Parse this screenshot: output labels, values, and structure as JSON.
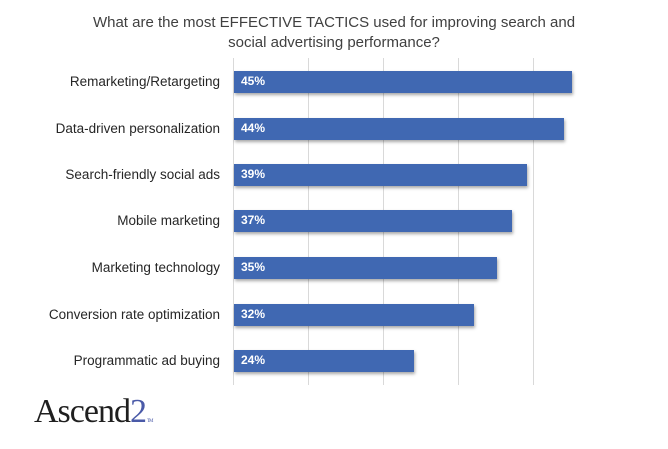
{
  "chart_data": {
    "type": "bar",
    "orientation": "horizontal",
    "title": "What are the most EFFECTIVE TACTICS used for improving search and social advertising performance?",
    "title_lines": [
      "What are the most EFFECTIVE TACTICS used for improving search and",
      "social advertising performance?"
    ],
    "categories": [
      "Remarketing/Retargeting",
      "Data-driven personalization",
      "Search-friendly social ads",
      "Mobile marketing",
      "Marketing technology",
      "Conversion rate optimization",
      "Programmatic ad buying"
    ],
    "values": [
      45,
      44,
      39,
      37,
      35,
      32,
      24
    ],
    "labels": [
      "45%",
      "44%",
      "39%",
      "37%",
      "35%",
      "32%",
      "24%"
    ],
    "xlabel": "",
    "ylabel": "",
    "xlim": [
      0,
      50
    ],
    "gridlines": [
      0,
      10,
      20,
      30,
      40
    ],
    "grid": true,
    "axis_tick_labels_visible": false,
    "legend": "none",
    "bar_color": "#4068b2"
  },
  "branding": {
    "logo_text": "Ascend",
    "logo_accent": "2",
    "logo_mark": "TM"
  }
}
